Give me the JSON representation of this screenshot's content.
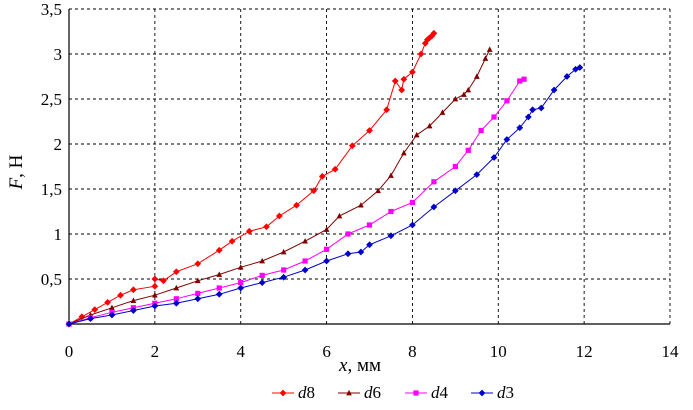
{
  "chart_data": {
    "type": "line",
    "xlabel": "x, мм",
    "xlabel_var": "x",
    "xlabel_unit": ", мм",
    "ylabel": "F, Н",
    "ylabel_var": "F",
    "ylabel_unit": ", Н",
    "xlim": [
      0,
      14
    ],
    "ylim": [
      0,
      3.5
    ],
    "x_ticks": [
      0,
      2,
      4,
      6,
      8,
      10,
      12,
      14
    ],
    "y_ticks": [
      0.5,
      1,
      1.5,
      2,
      2.5,
      3,
      3.5
    ],
    "x_tick_labels": [
      "0",
      "2",
      "4",
      "6",
      "8",
      "10",
      "12",
      "14"
    ],
    "y_tick_labels": [
      "0,5",
      "1",
      "1,5",
      "2",
      "2,5",
      "3",
      "3,5"
    ],
    "grid": true,
    "legend_position": "bottom",
    "series": [
      {
        "name": "d8",
        "label_letter": "d",
        "label_number": "8",
        "color": "#ff0000",
        "marker": "diamond",
        "x": [
          0,
          0.3,
          0.6,
          0.9,
          1.2,
          1.5,
          2.0,
          2.0,
          2.2,
          2.5,
          3.0,
          3.5,
          3.8,
          4.2,
          4.6,
          4.9,
          5.3,
          5.7,
          5.9,
          6.2,
          6.6,
          7.0,
          7.4,
          7.6,
          7.75,
          7.8,
          8.0,
          8.2,
          8.3,
          8.35,
          8.4,
          8.45,
          8.5
        ],
        "y": [
          0,
          0.08,
          0.16,
          0.24,
          0.32,
          0.38,
          0.42,
          0.5,
          0.48,
          0.58,
          0.67,
          0.82,
          0.92,
          1.03,
          1.08,
          1.2,
          1.32,
          1.48,
          1.64,
          1.72,
          1.98,
          2.15,
          2.38,
          2.7,
          2.6,
          2.72,
          2.8,
          3.0,
          3.12,
          3.16,
          3.18,
          3.2,
          3.23
        ]
      },
      {
        "name": "d6",
        "label_letter": "d",
        "label_number": "6",
        "color": "#800000",
        "marker": "triangle",
        "x": [
          0,
          0.5,
          1.0,
          1.5,
          2.0,
          2.5,
          3.0,
          3.5,
          4.0,
          4.5,
          5.0,
          5.5,
          6.0,
          6.3,
          6.8,
          7.2,
          7.5,
          7.8,
          8.1,
          8.4,
          8.7,
          9.0,
          9.2,
          9.3,
          9.5,
          9.7,
          9.8
        ],
        "y": [
          0,
          0.1,
          0.18,
          0.26,
          0.32,
          0.4,
          0.48,
          0.55,
          0.63,
          0.7,
          0.8,
          0.92,
          1.05,
          1.2,
          1.32,
          1.48,
          1.65,
          1.9,
          2.1,
          2.2,
          2.35,
          2.5,
          2.55,
          2.6,
          2.75,
          2.95,
          3.05
        ]
      },
      {
        "name": "d4",
        "label_letter": "d",
        "label_number": "4",
        "color": "#ff00ff",
        "marker": "square",
        "x": [
          0,
          0.5,
          1.0,
          1.5,
          2.0,
          2.5,
          3.0,
          3.5,
          4.0,
          4.5,
          5.0,
          5.5,
          6.0,
          6.5,
          7.0,
          7.5,
          8.0,
          8.5,
          9.0,
          9.3,
          9.6,
          9.9,
          10.2,
          10.5,
          10.6
        ],
        "y": [
          0,
          0.07,
          0.13,
          0.18,
          0.23,
          0.28,
          0.34,
          0.4,
          0.46,
          0.54,
          0.6,
          0.7,
          0.83,
          1.0,
          1.1,
          1.25,
          1.35,
          1.58,
          1.75,
          1.93,
          2.15,
          2.3,
          2.48,
          2.7,
          2.72
        ]
      },
      {
        "name": "d3",
        "label_letter": "d",
        "label_number": "3",
        "color": "#0000cc",
        "marker": "diamond",
        "x": [
          0,
          0.5,
          1.0,
          1.5,
          2.0,
          2.5,
          3.0,
          3.5,
          4.0,
          4.5,
          5.0,
          5.5,
          6.0,
          6.5,
          6.8,
          7.0,
          7.5,
          8.0,
          8.5,
          9.0,
          9.5,
          9.9,
          10.2,
          10.5,
          10.7,
          10.8,
          11.0,
          11.3,
          11.6,
          11.8,
          11.9
        ],
        "y": [
          0,
          0.06,
          0.1,
          0.15,
          0.2,
          0.23,
          0.28,
          0.33,
          0.4,
          0.46,
          0.52,
          0.6,
          0.7,
          0.78,
          0.8,
          0.88,
          0.98,
          1.1,
          1.3,
          1.48,
          1.66,
          1.85,
          2.05,
          2.18,
          2.3,
          2.38,
          2.4,
          2.6,
          2.75,
          2.83,
          2.85
        ]
      }
    ]
  }
}
